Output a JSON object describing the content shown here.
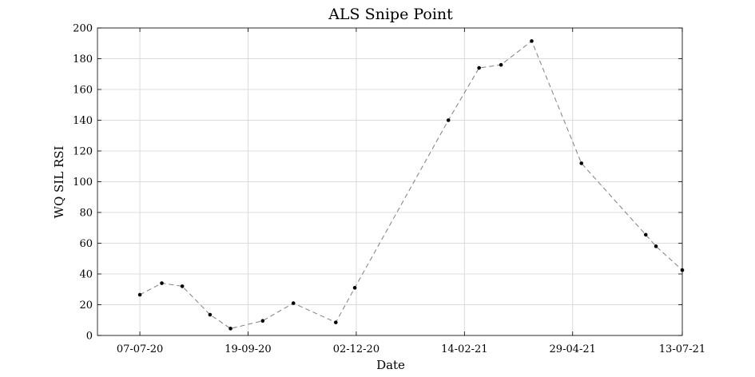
{
  "chart_data": {
    "type": "line",
    "title": "ALS Snipe Point",
    "xlabel": "Date",
    "ylabel": "WQ SIL RSI",
    "x": [
      "2020-07-07",
      "2020-07-22",
      "2020-08-05",
      "2020-08-24",
      "2020-09-07",
      "2020-09-29",
      "2020-10-20",
      "2020-11-18",
      "2020-12-01",
      "2021-02-03",
      "2021-02-24",
      "2021-03-11",
      "2021-04-01",
      "2021-05-05",
      "2021-06-18",
      "2021-06-25",
      "2021-07-13"
    ],
    "series": [
      {
        "values": [
          26.5,
          34,
          32,
          13.5,
          4.5,
          9.5,
          21,
          8.5,
          31,
          140,
          174,
          176,
          191.5,
          112,
          65.5,
          58,
          42.5
        ]
      }
    ],
    "x_ticks": [
      "07-07-20",
      "19-09-20",
      "02-12-20",
      "14-02-21",
      "29-04-21",
      "13-07-21"
    ],
    "x_tick_dates": [
      "2020-07-07",
      "2020-09-19",
      "2020-12-02",
      "2021-02-14",
      "2021-04-29",
      "2021-07-13"
    ],
    "xlim": [
      "2020-06-08",
      "2021-07-13"
    ],
    "y_ticks": [
      0,
      20,
      40,
      60,
      80,
      100,
      120,
      140,
      160,
      180,
      200
    ],
    "ylim": [
      0,
      200
    ],
    "grid": true,
    "line_style": "dashed",
    "line_color": "#7f7f7f",
    "marker_color": "#000000"
  }
}
